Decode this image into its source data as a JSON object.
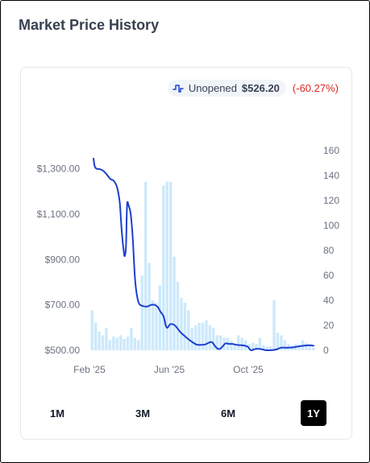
{
  "page": {
    "title": "Market Price History"
  },
  "legend": {
    "label": "Unopened",
    "price": "$526.20",
    "change": "(-60.27%)"
  },
  "ranges": [
    {
      "label": "1M",
      "active": false
    },
    {
      "label": "3M",
      "active": false
    },
    {
      "label": "6M",
      "active": false
    },
    {
      "label": "1Y",
      "active": true
    }
  ],
  "colors": {
    "line": "#1d3fd0",
    "bar": "#cde9fb",
    "change_negative": "#dc2626"
  },
  "chart_data": {
    "type": "line+bar",
    "grid": false,
    "x_tick_labels": [
      "Feb '25",
      "Jun '25",
      "Oct '25"
    ],
    "y_left": {
      "ticks": [
        "$500.00",
        "$700.00",
        "$900.00",
        "$1,100.00",
        "$1,300.00"
      ],
      "range": [
        500,
        1380
      ]
    },
    "y_right": {
      "ticks": [
        "0",
        "20",
        "40",
        "60",
        "80",
        "100",
        "120",
        "140",
        "160"
      ],
      "range": [
        0,
        160
      ]
    },
    "price_series": {
      "name": "Unopened",
      "x_days": [
        0,
        2,
        5,
        10,
        16,
        21,
        27,
        33,
        38,
        42,
        45,
        48,
        50,
        52,
        53,
        54,
        56,
        59,
        61,
        63,
        66,
        69,
        73,
        79,
        86,
        92,
        98,
        103,
        107,
        112,
        117,
        123,
        130,
        139,
        147,
        156,
        165,
        173,
        178,
        182,
        186,
        190,
        194,
        198,
        202,
        206,
        211,
        217,
        222,
        227,
        232,
        237,
        242,
        247,
        252,
        259,
        266,
        271,
        273,
        276,
        281,
        287,
        293,
        298,
        303,
        308,
        314,
        320,
        330,
        339,
        346,
        352
      ],
      "values": [
        1345,
        1310,
        1300,
        1298,
        1290,
        1275,
        1255,
        1245,
        1215,
        1150,
        1030,
        945,
        915,
        960,
        1080,
        1150,
        1140,
        1110,
        1060,
        985,
        830,
        750,
        705,
        695,
        693,
        700,
        700,
        690,
        670,
        650,
        600,
        615,
        610,
        580,
        560,
        540,
        525,
        524,
        525,
        530,
        535,
        535,
        520,
        508,
        506,
        515,
        530,
        528,
        528,
        525,
        523,
        522,
        520,
        515,
        500,
        506,
        506,
        503,
        502,
        500,
        500,
        501,
        504,
        510,
        512,
        511,
        512,
        513,
        518,
        521,
        522,
        520
      ]
    },
    "volume_series": {
      "name": "Volume",
      "values": [
        32,
        22,
        15,
        12,
        18,
        8,
        11,
        10,
        12,
        9,
        11,
        18,
        10,
        8,
        60,
        135,
        70,
        40,
        38,
        52,
        132,
        135,
        135,
        75,
        55,
        42,
        38,
        32,
        18,
        20,
        22,
        22,
        24,
        20,
        18,
        12,
        12,
        10,
        10,
        8,
        5,
        12,
        10,
        8,
        5,
        6,
        5,
        10,
        4,
        3,
        3,
        40,
        14,
        12,
        8,
        5,
        4,
        5,
        4,
        8,
        6,
        4,
        2
      ]
    }
  }
}
